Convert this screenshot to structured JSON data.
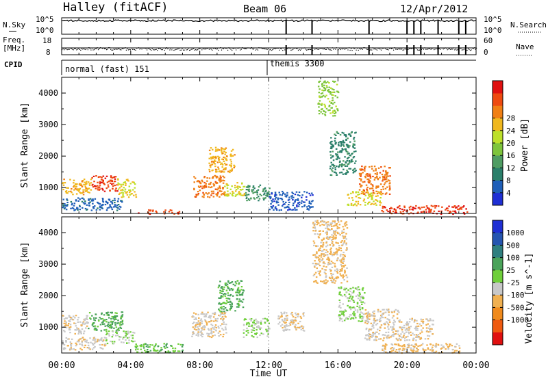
{
  "header": {
    "station": "Halley (fitACF)",
    "beam": "Beam 06",
    "date": "12/Apr/2012"
  },
  "params": {
    "nsky_label": "N.Sky",
    "nsky_ticks": [
      "10^5",
      "10^0"
    ],
    "nsearch_label": "N.Search",
    "nsearch_ticks": [
      "10^5",
      "10^0"
    ],
    "freq_label_1": "Freq.",
    "freq_label_2": "[MHz]",
    "freq_ticks": [
      "18",
      "8"
    ],
    "nave_label": "Nave",
    "nave_ticks": [
      "60",
      "0"
    ],
    "cpid_label": "CPID",
    "cpid_modes": [
      {
        "name": "normal (fast) 151",
        "start_h": 0
      },
      {
        "name": "themis 3300",
        "start_h": 12
      }
    ]
  },
  "chart_data": [
    {
      "type": "heatmap",
      "title": "",
      "xlabel": "Time UT",
      "ylabel": "Slant Range [km]",
      "xlim": [
        0,
        24
      ],
      "ylim": [
        180,
        4500
      ],
      "x_tick_labels": [
        "00:00",
        "04:00",
        "08:00",
        "12:00",
        "16:00",
        "20:00",
        "00:00"
      ],
      "y_ticks": [
        1000,
        2000,
        3000,
        4000
      ],
      "colorbar": {
        "label": "Power [dB]",
        "range": [
          0,
          30
        ],
        "tick_labels": [
          "4",
          "8",
          "12",
          "16",
          "20",
          "24",
          "28"
        ],
        "colors": [
          "#1f2fd4",
          "#1f5fb8",
          "#2a7f6a",
          "#4f9d63",
          "#7ec53c",
          "#bde02a",
          "#f0b81e",
          "#f07f14",
          "#ee4a10",
          "#e01010"
        ]
      },
      "features": [
        {
          "t": [
            0.0,
            1.7
          ],
          "r": [
            800,
            1300
          ],
          "value": 20
        },
        {
          "t": [
            1.7,
            3.2
          ],
          "r": [
            900,
            1400
          ],
          "value": 26
        },
        {
          "t": [
            3.2,
            4.3
          ],
          "r": [
            700,
            1300
          ],
          "value": 18
        },
        {
          "t": [
            0.0,
            3.5
          ],
          "r": [
            300,
            700
          ],
          "value": 5
        },
        {
          "t": [
            4.3,
            6.8
          ],
          "r": [
            180,
            320
          ],
          "value": 26
        },
        {
          "t": [
            7.6,
            9.4
          ],
          "r": [
            700,
            1400
          ],
          "value": 23
        },
        {
          "t": [
            9.4,
            10.6
          ],
          "r": [
            750,
            1200
          ],
          "value": 18
        },
        {
          "t": [
            8.5,
            10.0
          ],
          "r": [
            1500,
            2300
          ],
          "value": 20
        },
        {
          "t": [
            10.6,
            12.0
          ],
          "r": [
            600,
            1100
          ],
          "value": 10
        },
        {
          "t": [
            12.0,
            14.5
          ],
          "r": [
            300,
            900
          ],
          "value": 4
        },
        {
          "t": [
            14.8,
            16.0
          ],
          "r": [
            3300,
            4400
          ],
          "value": 14
        },
        {
          "t": [
            15.5,
            17.0
          ],
          "r": [
            1400,
            2800
          ],
          "value": 8
        },
        {
          "t": [
            17.2,
            19.0
          ],
          "r": [
            800,
            1700
          ],
          "value": 23
        },
        {
          "t": [
            16.5,
            18.5
          ],
          "r": [
            450,
            900
          ],
          "value": 18
        },
        {
          "t": [
            18.5,
            23.5
          ],
          "r": [
            180,
            450
          ],
          "value": 27
        }
      ]
    },
    {
      "type": "heatmap",
      "title": "",
      "xlabel": "Time UT",
      "ylabel": "Slant Range [km]",
      "xlim": [
        0,
        24
      ],
      "ylim": [
        180,
        4500
      ],
      "x_tick_labels": [
        "00:00",
        "04:00",
        "08:00",
        "12:00",
        "16:00",
        "20:00",
        "00:00"
      ],
      "y_ticks": [
        1000,
        2000,
        3000,
        4000
      ],
      "colorbar": {
        "label": "Velocity [m s^-1]",
        "range": [
          -1200,
          1200
        ],
        "tick_labels": [
          "1000",
          "500",
          "100",
          "25",
          "-25",
          "-100",
          "-500",
          "-1000"
        ],
        "colors": [
          "#1f2fd4",
          "#2555b0",
          "#2f7f7f",
          "#4aa35a",
          "#6fcf3a",
          "#c8c8c8",
          "#f0b050",
          "#f08a1c",
          "#ef5a10",
          "#e01010"
        ]
      },
      "features": [
        {
          "t": [
            0.0,
            1.5
          ],
          "r": [
            800,
            1400
          ],
          "value": -200
        },
        {
          "t": [
            1.5,
            3.5
          ],
          "r": [
            900,
            1500
          ],
          "value": 300
        },
        {
          "t": [
            0.0,
            2.5
          ],
          "r": [
            300,
            700
          ],
          "value": -200
        },
        {
          "t": [
            2.5,
            4.2
          ],
          "r": [
            500,
            900
          ],
          "value": 0
        },
        {
          "t": [
            4.2,
            7.0
          ],
          "r": [
            200,
            500
          ],
          "value": 200
        },
        {
          "t": [
            7.5,
            9.5
          ],
          "r": [
            700,
            1500
          ],
          "value": -200
        },
        {
          "t": [
            9.0,
            10.5
          ],
          "r": [
            1500,
            2500
          ],
          "value": 300
        },
        {
          "t": [
            10.5,
            12.0
          ],
          "r": [
            700,
            1300
          ],
          "value": 0
        },
        {
          "t": [
            12.5,
            14.0
          ],
          "r": [
            900,
            1500
          ],
          "value": -200
        },
        {
          "t": [
            14.5,
            16.5
          ],
          "r": [
            2400,
            4400
          ],
          "value": -300
        },
        {
          "t": [
            16.0,
            17.5
          ],
          "r": [
            1200,
            2300
          ],
          "value": 0
        },
        {
          "t": [
            17.5,
            19.5
          ],
          "r": [
            600,
            1600
          ],
          "value": -200
        },
        {
          "t": [
            19.5,
            21.5
          ],
          "r": [
            600,
            1300
          ],
          "value": -200
        },
        {
          "t": [
            18.5,
            23.0
          ],
          "r": [
            200,
            500
          ],
          "value": -300
        }
      ]
    }
  ]
}
